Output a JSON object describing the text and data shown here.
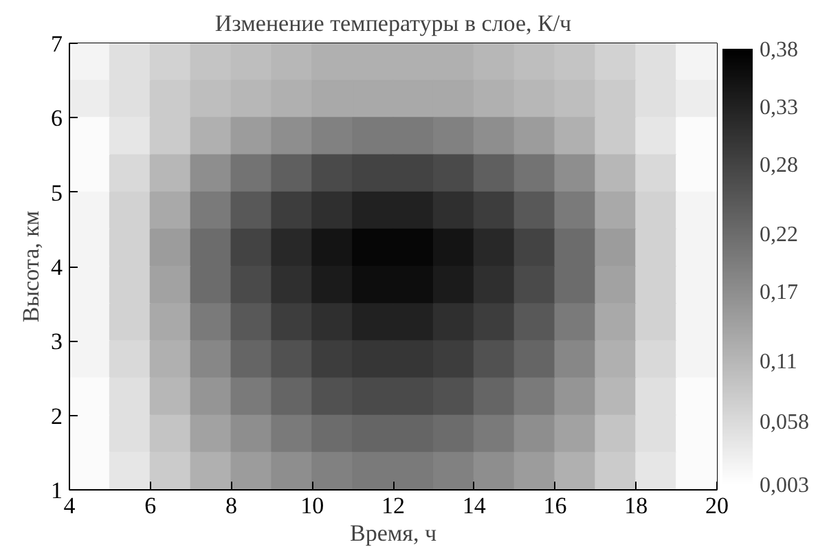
{
  "chart_data": {
    "type": "heatmap",
    "title": "Изменение температуры в слое, К/ч",
    "xlabel": "Время, ч",
    "ylabel": "Высота, км",
    "x": [
      4.5,
      5.5,
      6.5,
      7.5,
      8.5,
      9.5,
      10.5,
      11.5,
      12.5,
      13.5,
      14.5,
      15.5,
      16.5,
      17.5,
      18.5,
      19.5
    ],
    "xlim": [
      4,
      20
    ],
    "xticks": [
      4,
      6,
      8,
      10,
      12,
      14,
      16,
      18,
      20
    ],
    "ylim": [
      1,
      7
    ],
    "yticks": [
      1,
      2,
      3,
      4,
      5,
      6,
      7
    ],
    "clim": [
      0.003,
      0.38
    ],
    "cticks": [
      {
        "value": 0.003,
        "label": "0,003"
      },
      {
        "value": 0.058,
        "label": "0,058"
      },
      {
        "value": 0.11,
        "label": "0,11"
      },
      {
        "value": 0.17,
        "label": "0,17"
      },
      {
        "value": 0.22,
        "label": "0,22"
      },
      {
        "value": 0.28,
        "label": "0,28"
      },
      {
        "value": 0.33,
        "label": "0,33"
      },
      {
        "value": 0.38,
        "label": "0,38"
      }
    ],
    "cells": [
      [
        0.02,
        0.05,
        0.07,
        0.09,
        0.1,
        0.11,
        0.12,
        0.12,
        0.12,
        0.12,
        0.11,
        0.1,
        0.09,
        0.07,
        0.05,
        0.02
      ],
      [
        0.03,
        0.05,
        0.08,
        0.1,
        0.11,
        0.12,
        0.13,
        0.13,
        0.13,
        0.13,
        0.12,
        0.11,
        0.1,
        0.08,
        0.05,
        0.03
      ],
      [
        0.01,
        0.04,
        0.08,
        0.12,
        0.15,
        0.17,
        0.19,
        0.2,
        0.2,
        0.19,
        0.17,
        0.15,
        0.12,
        0.08,
        0.04,
        0.01
      ],
      [
        0.01,
        0.06,
        0.11,
        0.17,
        0.21,
        0.24,
        0.27,
        0.28,
        0.28,
        0.27,
        0.24,
        0.21,
        0.17,
        0.11,
        0.06,
        0.01
      ],
      [
        0.02,
        0.07,
        0.13,
        0.2,
        0.25,
        0.29,
        0.31,
        0.33,
        0.33,
        0.31,
        0.29,
        0.25,
        0.2,
        0.13,
        0.07,
        0.02
      ],
      [
        0.02,
        0.07,
        0.15,
        0.22,
        0.28,
        0.32,
        0.35,
        0.37,
        0.37,
        0.35,
        0.32,
        0.28,
        0.22,
        0.15,
        0.07,
        0.02
      ],
      [
        0.02,
        0.07,
        0.14,
        0.22,
        0.27,
        0.31,
        0.34,
        0.36,
        0.36,
        0.34,
        0.31,
        0.27,
        0.22,
        0.14,
        0.07,
        0.02
      ],
      [
        0.02,
        0.07,
        0.13,
        0.2,
        0.25,
        0.29,
        0.31,
        0.33,
        0.33,
        0.31,
        0.29,
        0.25,
        0.2,
        0.13,
        0.07,
        0.02
      ],
      [
        0.02,
        0.06,
        0.12,
        0.18,
        0.23,
        0.26,
        0.29,
        0.3,
        0.3,
        0.29,
        0.26,
        0.23,
        0.18,
        0.12,
        0.06,
        0.02
      ],
      [
        0.01,
        0.05,
        0.11,
        0.16,
        0.2,
        0.23,
        0.26,
        0.27,
        0.27,
        0.26,
        0.23,
        0.2,
        0.16,
        0.11,
        0.05,
        0.01
      ],
      [
        0.01,
        0.05,
        0.09,
        0.14,
        0.17,
        0.2,
        0.22,
        0.23,
        0.23,
        0.22,
        0.2,
        0.17,
        0.14,
        0.09,
        0.05,
        0.01
      ],
      [
        0.01,
        0.04,
        0.08,
        0.12,
        0.15,
        0.17,
        0.19,
        0.2,
        0.2,
        0.19,
        0.17,
        0.15,
        0.12,
        0.08,
        0.04,
        0.01
      ]
    ]
  }
}
